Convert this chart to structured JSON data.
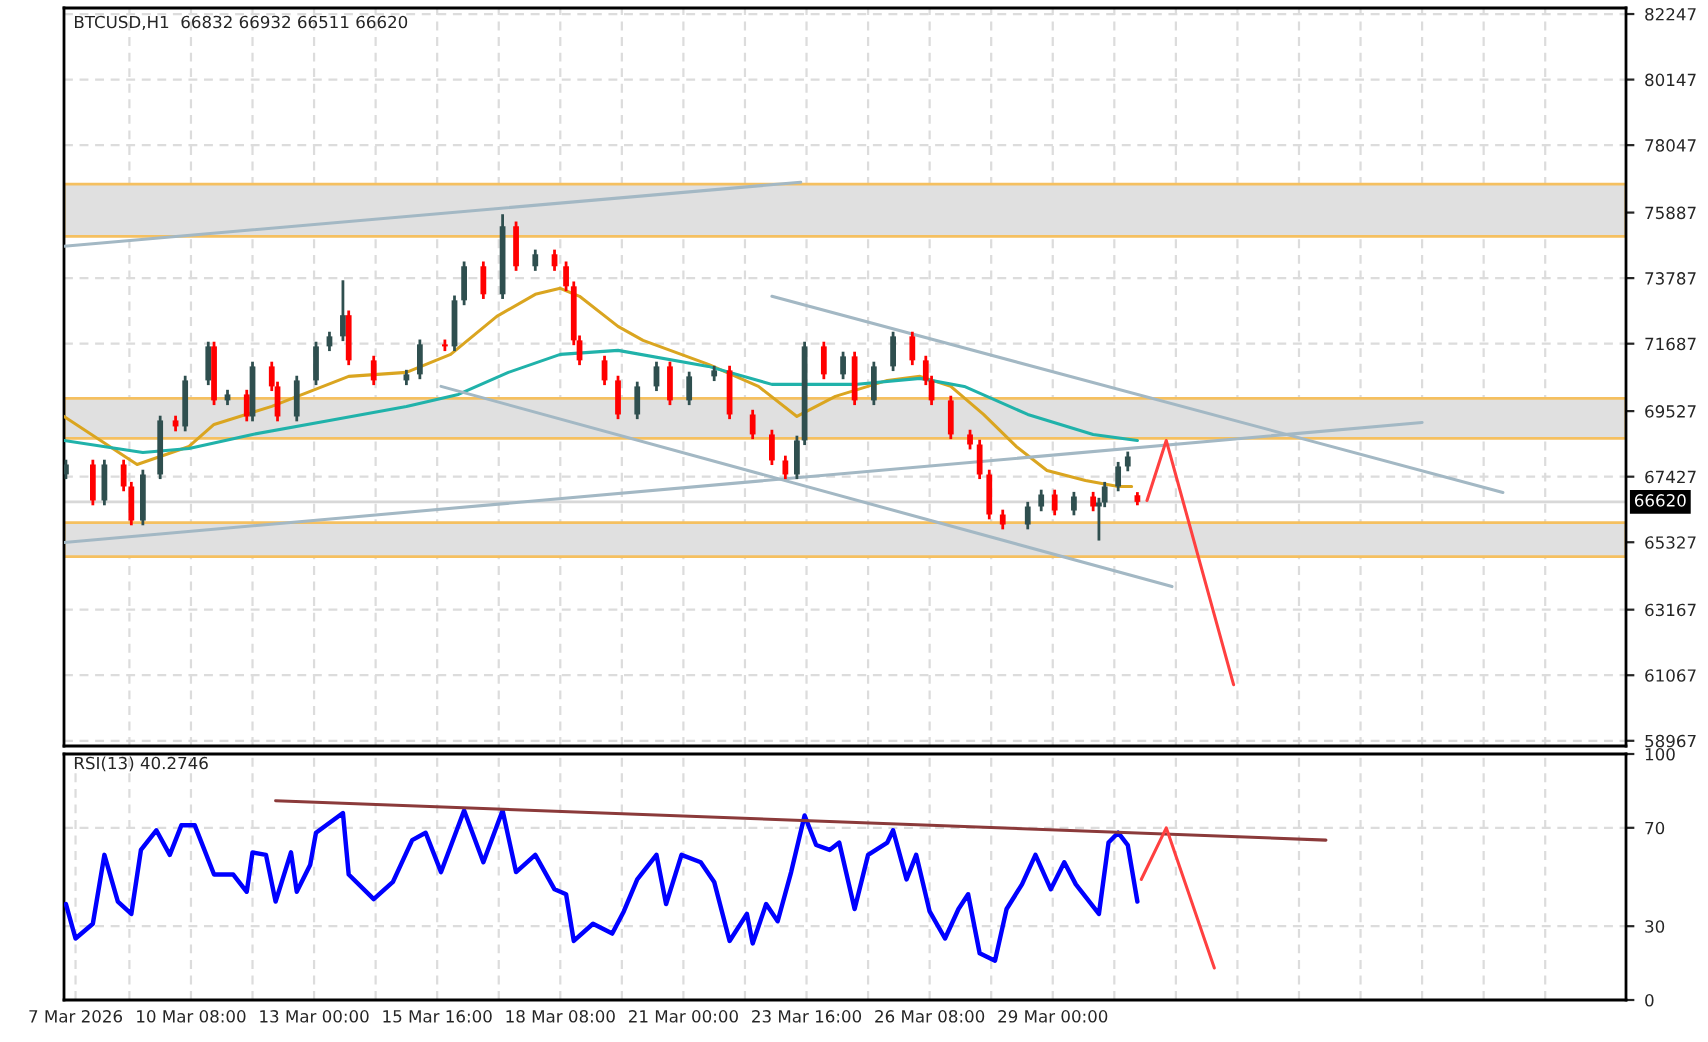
{
  "chart_data": [
    {
      "type": "candlestick",
      "title": "BTCUSD,H1  66832 66932 66511 66620",
      "x": [
        "2026-03-07T15:00",
        "2026-03-08T05:00",
        "2026-03-08T11:00",
        "2026-03-08T21:00",
        "2026-03-09T01:00",
        "2026-03-09T07:00",
        "2026-03-09T16:00",
        "2026-03-10T00:00",
        "2026-03-10T05:00",
        "2026-03-10T17:00",
        "2026-03-10T20:00",
        "2026-03-11T03:00",
        "2026-03-11T13:00",
        "2026-03-11T16:00",
        "2026-03-12T02:00",
        "2026-03-12T05:00",
        "2026-03-12T15:00",
        "2026-03-13T01:00",
        "2026-03-13T08:00",
        "2026-03-13T15:00",
        "2026-03-13T18:00",
        "2026-03-14T07:00",
        "2026-03-15T00:00",
        "2026-03-15T07:00",
        "2026-03-15T20:00",
        "2026-03-16T01:00",
        "2026-03-16T06:00",
        "2026-03-16T16:00",
        "2026-03-17T02:00",
        "2026-03-17T09:00",
        "2026-03-17T19:00",
        "2026-03-18T05:00",
        "2026-03-18T11:00",
        "2026-03-18T15:00",
        "2026-03-18T18:00",
        "2026-03-19T07:00",
        "2026-03-19T14:00",
        "2026-03-20T00:00",
        "2026-03-20T10:00",
        "2026-03-20T17:00",
        "2026-03-21T03:00",
        "2026-03-21T16:00",
        "2026-03-22T00:00",
        "2026-03-22T12:00",
        "2026-03-22T22:00",
        "2026-03-23T05:00",
        "2026-03-23T11:00",
        "2026-03-23T15:00",
        "2026-03-24T01:00",
        "2026-03-24T11:00",
        "2026-03-24T17:00",
        "2026-03-25T03:00",
        "2026-03-25T13:00",
        "2026-03-25T23:00",
        "2026-03-26T06:00",
        "2026-03-26T09:00",
        "2026-03-26T19:00",
        "2026-03-27T05:00",
        "2026-03-27T10:00",
        "2026-03-27T15:00",
        "2026-03-27T22:00",
        "2026-03-28T11:00",
        "2026-03-28T18:00",
        "2026-03-29T01:00",
        "2026-03-29T11:00",
        "2026-03-29T21:00",
        "2026-03-30T00:00",
        "2026-03-30T03:00",
        "2026-03-30T10:00",
        "2026-03-30T15:00",
        "2026-03-30T20:00"
      ],
      "ohlc": [
        [
          67500,
          67970,
          67350,
          67818
        ],
        [
          67818,
          67970,
          66510,
          66664
        ],
        [
          66664,
          67970,
          66510,
          67818
        ],
        [
          67818,
          67970,
          66960,
          67113
        ],
        [
          67113,
          67260,
          65870,
          66022
        ],
        [
          66022,
          67650,
          65870,
          67497
        ],
        [
          67497,
          69380,
          67350,
          69229
        ],
        [
          69229,
          69380,
          68880,
          69036
        ],
        [
          69036,
          70660,
          68880,
          70511
        ],
        [
          70511,
          71750,
          70360,
          71601
        ],
        [
          71601,
          71750,
          69720,
          69870
        ],
        [
          69870,
          70210,
          69720,
          70062
        ],
        [
          70062,
          70210,
          69200,
          69355
        ],
        [
          69355,
          71110,
          69200,
          70960
        ],
        [
          70960,
          71110,
          70170,
          70319
        ],
        [
          70319,
          70470,
          69200,
          69355
        ],
        [
          69355,
          70660,
          69200,
          70511
        ],
        [
          70511,
          71750,
          70360,
          71601
        ],
        [
          71601,
          72070,
          71450,
          71922
        ],
        [
          71922,
          73718,
          71770,
          72600
        ],
        [
          72600,
          72750,
          71000,
          71153
        ],
        [
          71153,
          71300,
          70360,
          70511
        ],
        [
          70511,
          70850,
          70360,
          70704
        ],
        [
          70704,
          71820,
          70550,
          71666
        ],
        [
          71666,
          71820,
          71450,
          71600
        ],
        [
          71600,
          73230,
          71450,
          73076
        ],
        [
          73076,
          74320,
          72920,
          74167
        ],
        [
          74167,
          74320,
          73120,
          73269
        ],
        [
          73269,
          75834,
          73120,
          75449
        ],
        [
          75449,
          75600,
          74020,
          74167
        ],
        [
          74167,
          74700,
          74020,
          74551
        ],
        [
          74551,
          74700,
          74020,
          74167
        ],
        [
          74167,
          74320,
          73370,
          73525
        ],
        [
          73525,
          73680,
          71640,
          71794
        ],
        [
          71794,
          71950,
          71000,
          71153
        ],
        [
          71153,
          71300,
          70360,
          70511
        ],
        [
          70511,
          70660,
          69270,
          69419
        ],
        [
          69419,
          70470,
          69270,
          70319
        ],
        [
          70319,
          71110,
          70170,
          70960
        ],
        [
          70960,
          71110,
          69720,
          69870
        ],
        [
          69870,
          70790,
          69720,
          70640
        ],
        [
          70640,
          70980,
          70490,
          70832
        ],
        [
          70832,
          70980,
          69270,
          69419
        ],
        [
          69419,
          69570,
          68630,
          68780
        ],
        [
          68780,
          68930,
          67800,
          67946
        ],
        [
          67946,
          68100,
          67350,
          67497
        ],
        [
          67497,
          68740,
          67350,
          68587
        ],
        [
          68587,
          71750,
          68440,
          71601
        ],
        [
          71601,
          71750,
          70550,
          70704
        ],
        [
          70704,
          71430,
          70550,
          71281
        ],
        [
          71281,
          71430,
          69720,
          69870
        ],
        [
          69870,
          71110,
          69720,
          70960
        ],
        [
          70960,
          72070,
          70810,
          71922
        ],
        [
          71922,
          72070,
          71000,
          71153
        ],
        [
          71153,
          71300,
          70360,
          70511
        ],
        [
          70511,
          70660,
          69720,
          69870
        ],
        [
          69870,
          70020,
          68630,
          68780
        ],
        [
          68780,
          68930,
          68300,
          68458
        ],
        [
          68458,
          68610,
          67350,
          67497
        ],
        [
          67497,
          67650,
          66060,
          66215
        ],
        [
          66215,
          66370,
          65740,
          65894
        ],
        [
          65894,
          66620,
          65740,
          66471
        ],
        [
          66471,
          67010,
          66320,
          66856
        ],
        [
          66856,
          67010,
          66190,
          66343
        ],
        [
          66343,
          66940,
          66190,
          66792
        ],
        [
          66792,
          66940,
          66320,
          66471
        ],
        [
          66471,
          66750,
          65381,
          66600
        ],
        [
          66600,
          67260,
          66450,
          67113
        ],
        [
          67113,
          67900,
          66960,
          67754
        ],
        [
          67754,
          68230,
          67600,
          68074
        ],
        [
          66832,
          66932,
          66511,
          66620
        ]
      ],
      "colors": [
        "#2f4f4f",
        "#ff0000",
        "#2f4f4f",
        "#ff0000",
        "#ff0000",
        "#2f4f4f",
        "#2f4f4f",
        "#ff0000",
        "#2f4f4f",
        "#2f4f4f",
        "#ff0000",
        "#2f4f4f",
        "#ff0000",
        "#2f4f4f",
        "#ff0000",
        "#ff0000",
        "#2f4f4f",
        "#2f4f4f",
        "#2f4f4f",
        "#2f4f4f",
        "#ff0000",
        "#ff0000",
        "#2f4f4f",
        "#2f4f4f",
        "#ff0000",
        "#2f4f4f",
        "#2f4f4f",
        "#ff0000",
        "#2f4f4f",
        "#ff0000",
        "#2f4f4f",
        "#ff0000",
        "#ff0000",
        "#ff0000",
        "#ff0000",
        "#ff0000",
        "#ff0000",
        "#2f4f4f",
        "#2f4f4f",
        "#ff0000",
        "#2f4f4f",
        "#2f4f4f",
        "#ff0000",
        "#ff0000",
        "#ff0000",
        "#ff0000",
        "#2f4f4f",
        "#2f4f4f",
        "#ff0000",
        "#2f4f4f",
        "#ff0000",
        "#2f4f4f",
        "#2f4f4f",
        "#ff0000",
        "#ff0000",
        "#ff0000",
        "#ff0000",
        "#ff0000",
        "#ff0000",
        "#ff0000",
        "#ff0000",
        "#2f4f4f",
        "#2f4f4f",
        "#ff0000",
        "#2f4f4f",
        "#ff0000",
        "#2f4f4f",
        "#2f4f4f",
        "#2f4f4f",
        "#2f4f4f",
        "#ff0000"
      ],
      "series": [
        {
          "type": "line",
          "color": "#daa520",
          "x": [
            "2026-03-07T14:00",
            "2026-03-09T04:00",
            "2026-03-10T07:00",
            "2026-03-10T20:00",
            "2026-03-12T02:00",
            "2026-03-13T18:00",
            "2026-03-15T00:00",
            "2026-03-15T23:00",
            "2026-03-16T23:00",
            "2026-03-17T19:00",
            "2026-03-18T08:00",
            "2026-03-18T18:00",
            "2026-03-19T14:00",
            "2026-03-20T03:00",
            "2026-03-21T13:00",
            "2026-03-22T15:00",
            "2026-03-23T11:00",
            "2026-03-24T07:00",
            "2026-03-25T10:00",
            "2026-03-26T03:00",
            "2026-03-26T19:00",
            "2026-03-27T12:00",
            "2026-03-28T05:00",
            "2026-03-28T21:00",
            "2026-03-29T17:00",
            "2026-03-30T10:00",
            "2026-03-30T17:00"
          ],
          "values": [
            69357,
            67818,
            68395,
            69101,
            69678,
            70640,
            70768,
            71345,
            72563,
            73269,
            73461,
            73205,
            72243,
            71794,
            71024,
            70319,
            69357,
            69999,
            70511,
            70640,
            70319,
            69421,
            68395,
            67626,
            67305,
            67113,
            67113
          ]
        },
        {
          "type": "line",
          "color": "#20b2aa",
          "x": [
            "2026-03-07T14:00",
            "2026-03-09T07:00",
            "2026-03-10T07:00",
            "2026-03-11T16:00",
            "2026-03-13T08:00",
            "2026-03-15T00:00",
            "2026-03-16T03:00",
            "2026-03-17T05:00",
            "2026-03-18T08:00",
            "2026-03-19T14:00",
            "2026-03-21T13:00",
            "2026-03-22T22:00",
            "2026-03-24T17:00",
            "2026-03-26T03:00",
            "2026-03-27T02:00",
            "2026-03-28T11:00",
            "2026-03-29T21:00",
            "2026-03-30T20:00"
          ],
          "values": [
            68587,
            68202,
            68331,
            68780,
            69229,
            69678,
            70062,
            70768,
            71345,
            71473,
            70960,
            70383,
            70383,
            70576,
            70319,
            69421,
            68780,
            68587
          ]
        },
        {
          "type": "line",
          "color": "#a3b8c4",
          "x": [
            "2026-03-07T14:00",
            "2026-03-23T13:00"
          ],
          "values": [
            74808,
            76860
          ]
        },
        {
          "type": "line",
          "color": "#a3b8c4",
          "x": [
            "2026-03-07T14:00",
            "2026-04-06T00:00"
          ],
          "values": [
            65317,
            69165
          ]
        },
        {
          "type": "line",
          "color": "#a3b8c4",
          "x": [
            "2026-03-15T18:00",
            "2026-03-31T14:00"
          ],
          "values": [
            70319,
            63907
          ]
        },
        {
          "type": "line",
          "color": "#a3b8c4",
          "x": [
            "2026-03-22T22:00",
            "2026-04-07T18:00"
          ],
          "values": [
            73205,
            66920
          ]
        },
        {
          "type": "line",
          "color": "#ff4040",
          "x": [
            "2026-03-31T01:00",
            "2026-03-31T11:00",
            "2026-04-01T22:00"
          ],
          "values": [
            66664,
            68587,
            60763
          ]
        }
      ],
      "bands": [
        {
          "axis": "y",
          "from": 75127,
          "to": 76796,
          "color": "#e0e0e0"
        },
        {
          "axis": "y",
          "from": 68651,
          "to": 69934,
          "color": "#e0e0e0"
        },
        {
          "axis": "y",
          "from": 64868,
          "to": 65958,
          "color": "#e0e0e0"
        }
      ],
      "ref_lines": [
        {
          "axis": "y",
          "value": 66620,
          "label": "66620",
          "color": "#d8d8d8"
        }
      ],
      "xlim": [
        "2026-03-07T14:00",
        "2026-04-10T10:00"
      ],
      "xticks": [
        {
          "value": "2026-03-09T00:00",
          "label": null
        },
        {
          "value": "2026-03-10T08:00",
          "label": null
        },
        {
          "value": "2026-03-11T16:00",
          "label": null
        },
        {
          "value": "2026-03-13T00:00",
          "label": null
        },
        {
          "value": "2026-03-14T08:00",
          "label": null
        },
        {
          "value": "2026-03-15T16:00",
          "label": null
        },
        {
          "value": "2026-03-17T00:00",
          "label": null
        },
        {
          "value": "2026-03-18T08:00",
          "label": null
        },
        {
          "value": "2026-03-19T16:00",
          "label": null
        },
        {
          "value": "2026-03-21T00:00",
          "label": null
        },
        {
          "value": "2026-03-22T08:00",
          "label": null
        },
        {
          "value": "2026-03-23T16:00",
          "label": null
        },
        {
          "value": "2026-03-25T00:00",
          "label": null
        },
        {
          "value": "2026-03-26T08:00",
          "label": null
        },
        {
          "value": "2026-03-27T16:00",
          "label": null
        },
        {
          "value": "2026-03-29T00:00",
          "label": null
        },
        {
          "value": "2026-03-30T08:00",
          "label": null
        },
        {
          "value": "2026-03-31T16:00",
          "label": null
        },
        {
          "value": "2026-04-02T00:00",
          "label": null
        },
        {
          "value": "2026-04-03T08:00",
          "label": null
        },
        {
          "value": "2026-04-04T16:00",
          "label": null
        },
        {
          "value": "2026-04-06T00:00",
          "label": null
        },
        {
          "value": "2026-04-07T08:00",
          "label": null
        },
        {
          "value": "2026-04-08T16:00",
          "label": null
        }
      ],
      "ylim": [
        58800,
        82440
      ],
      "yticks": [
        58967,
        61067,
        63167,
        65327,
        67427,
        69527,
        71687,
        73787,
        75887,
        78047,
        80147,
        82247
      ],
      "grid": true,
      "tick_labels": "y"
    },
    {
      "type": "line",
      "title": "RSI(13) 40.2746",
      "series": [
        {
          "type": "line",
          "color": "#0000ff",
          "x": [
            "2026-03-07T15:00",
            "2026-03-07T20:00",
            "2026-03-08T05:00",
            "2026-03-08T11:00",
            "2026-03-08T18:00",
            "2026-03-09T01:00",
            "2026-03-09T06:00",
            "2026-03-09T14:00",
            "2026-03-09T21:00",
            "2026-03-10T03:00",
            "2026-03-10T10:00",
            "2026-03-10T20:00",
            "2026-03-11T06:00",
            "2026-03-11T13:00",
            "2026-03-11T16:00",
            "2026-03-11T23:00",
            "2026-03-12T04:00",
            "2026-03-12T12:00",
            "2026-03-12T15:00",
            "2026-03-12T22:00",
            "2026-03-13T01:00",
            "2026-03-13T15:00",
            "2026-03-13T18:00",
            "2026-03-14T07:00",
            "2026-03-14T17:00",
            "2026-03-15T03:00",
            "2026-03-15T10:00",
            "2026-03-15T18:00",
            "2026-03-16T06:00",
            "2026-03-16T16:00",
            "2026-03-17T02:00",
            "2026-03-17T09:00",
            "2026-03-17T19:00",
            "2026-03-18T05:00",
            "2026-03-18T11:00",
            "2026-03-18T15:00",
            "2026-03-19T01:00",
            "2026-03-19T11:00",
            "2026-03-19T17:00",
            "2026-03-20T00:00",
            "2026-03-20T10:00",
            "2026-03-20T15:00",
            "2026-03-20T23:00",
            "2026-03-21T09:00",
            "2026-03-21T16:00",
            "2026-03-22T00:00",
            "2026-03-22T09:00",
            "2026-03-22T12:00",
            "2026-03-22T19:00",
            "2026-03-23T01:00",
            "2026-03-23T08:00",
            "2026-03-23T15:00",
            "2026-03-23T21:00",
            "2026-03-24T04:00",
            "2026-03-24T09:00",
            "2026-03-24T17:00",
            "2026-03-25T00:00",
            "2026-03-25T10:00",
            "2026-03-25T13:00",
            "2026-03-25T20:00",
            "2026-03-26T01:00",
            "2026-03-26T08:00",
            "2026-03-26T16:00",
            "2026-03-26T23:00",
            "2026-03-27T04:00",
            "2026-03-27T10:00",
            "2026-03-27T18:00",
            "2026-03-28T00:00",
            "2026-03-28T08:00",
            "2026-03-28T15:00",
            "2026-03-28T23:00",
            "2026-03-29T06:00",
            "2026-03-29T12:00",
            "2026-03-30T00:00",
            "2026-03-30T05:00",
            "2026-03-30T10:00",
            "2026-03-30T15:00",
            "2026-03-30T20:00"
          ],
          "values": [
            39,
            25,
            31,
            59,
            40,
            35,
            61,
            69,
            59,
            71,
            71,
            51,
            51,
            44,
            60,
            59,
            40,
            60,
            44,
            55,
            68,
            76,
            51,
            41,
            48,
            65,
            68,
            52,
            77,
            56,
            77,
            52,
            59,
            45,
            43,
            24,
            31,
            27,
            36,
            49,
            59,
            39,
            59,
            56,
            48,
            24,
            35,
            23,
            39,
            32,
            52,
            75,
            63,
            61,
            64,
            37,
            59,
            64,
            69,
            49,
            59,
            36,
            25,
            37,
            43,
            19,
            16,
            37,
            47,
            59,
            45,
            56,
            47,
            35,
            64,
            68,
            63,
            40
          ]
        },
        {
          "type": "line",
          "color": "#8b3a3a",
          "x": [
            "2026-03-12T04:00",
            "2026-04-03T22:00"
          ],
          "values": [
            81,
            65
          ]
        },
        {
          "type": "line",
          "color": "#ff4040",
          "x": [
            "2026-03-30T22:00",
            "2026-03-31T11:00",
            "2026-04-01T12:00"
          ],
          "values": [
            49,
            70,
            13
          ]
        }
      ],
      "xlim": [
        "2026-03-07T14:00",
        "2026-04-10T10:00"
      ],
      "xticks": [
        {
          "value": "2026-03-07T20:00",
          "label": "7 Mar 2026"
        },
        {
          "value": "2026-03-09T00:00",
          "label": null
        },
        {
          "value": "2026-03-10T08:00",
          "label": "10 Mar 08:00"
        },
        {
          "value": "2026-03-11T16:00",
          "label": null
        },
        {
          "value": "2026-03-13T00:00",
          "label": "13 Mar 00:00"
        },
        {
          "value": "2026-03-14T08:00",
          "label": null
        },
        {
          "value": "2026-03-15T16:00",
          "label": "15 Mar 16:00"
        },
        {
          "value": "2026-03-17T00:00",
          "label": null
        },
        {
          "value": "2026-03-18T08:00",
          "label": "18 Mar 08:00"
        },
        {
          "value": "2026-03-19T16:00",
          "label": null
        },
        {
          "value": "2026-03-21T00:00",
          "label": "21 Mar 00:00"
        },
        {
          "value": "2026-03-22T08:00",
          "label": null
        },
        {
          "value": "2026-03-23T16:00",
          "label": "23 Mar 16:00"
        },
        {
          "value": "2026-03-25T00:00",
          "label": null
        },
        {
          "value": "2026-03-26T08:00",
          "label": "26 Mar 08:00"
        },
        {
          "value": "2026-03-27T16:00",
          "label": null
        },
        {
          "value": "2026-03-29T00:00",
          "label": "29 Mar 00:00"
        },
        {
          "value": "2026-03-30T08:00",
          "label": null
        },
        {
          "value": "2026-03-31T16:00",
          "label": null
        },
        {
          "value": "2026-04-02T00:00",
          "label": null
        },
        {
          "value": "2026-04-03T08:00",
          "label": null
        },
        {
          "value": "2026-04-04T16:00",
          "label": null
        },
        {
          "value": "2026-04-06T00:00",
          "label": null
        },
        {
          "value": "2026-04-07T08:00",
          "label": null
        },
        {
          "value": "2026-04-08T16:00",
          "label": null
        }
      ],
      "ylim": [
        0,
        100
      ],
      "yticks": [
        0,
        30,
        70,
        100
      ],
      "grid": true
    }
  ]
}
